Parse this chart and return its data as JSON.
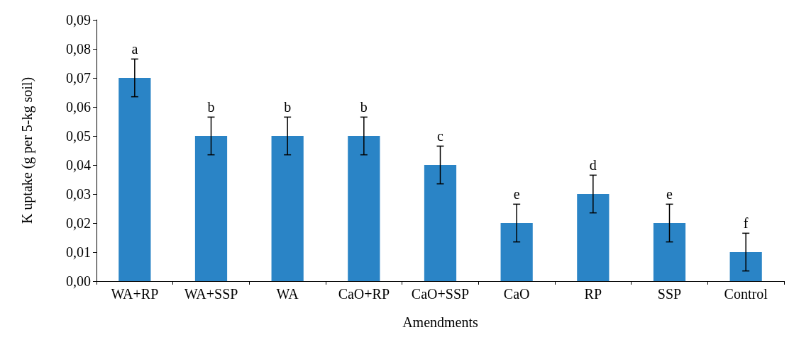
{
  "chart_data": {
    "type": "bar",
    "xlabel": "Amendments",
    "ylabel": "K uptake (g per 5-kg soil)",
    "categories": [
      "WA+RP",
      "WA+SSP",
      "WA",
      "CaO+RP",
      "CaO+SSP",
      "CaO",
      "RP",
      "SSP",
      "Control"
    ],
    "values": [
      0.07,
      0.05,
      0.05,
      0.05,
      0.04,
      0.02,
      0.03,
      0.02,
      0.01
    ],
    "errors": [
      0.0065,
      0.0065,
      0.0065,
      0.0065,
      0.0065,
      0.0065,
      0.0065,
      0.0065,
      0.0065
    ],
    "color": "#2a84c6",
    "ylim": [
      0,
      0.09
    ],
    "yticks": [
      {
        "value": 0,
        "label": "0,00"
      },
      {
        "value": 0.01,
        "label": "0,01"
      },
      {
        "value": 0.02,
        "label": "0,02"
      },
      {
        "value": 0.03,
        "label": "0,03"
      },
      {
        "value": 0.04,
        "label": "0,04"
      },
      {
        "value": 0.05,
        "label": "0,05"
      },
      {
        "value": 0.06,
        "label": "0,06"
      },
      {
        "value": 0.07,
        "label": "0,07"
      },
      {
        "value": 0.08,
        "label": "0,08"
      },
      {
        "value": 0.09,
        "label": "0,09"
      }
    ],
    "annotations": [
      {
        "text": "a",
        "x": "WA+RP",
        "y": 0.0765
      },
      {
        "text": "b",
        "x": "WA+SSP",
        "y": 0.0565
      },
      {
        "text": "b",
        "x": "WA",
        "y": 0.0565
      },
      {
        "text": "b",
        "x": "CaO+RP",
        "y": 0.0565
      },
      {
        "text": "c",
        "x": "CaO+SSP",
        "y": 0.0465
      },
      {
        "text": "e",
        "x": "CaO",
        "y": 0.0265
      },
      {
        "text": "d",
        "x": "RP",
        "y": 0.0365
      },
      {
        "text": "e",
        "x": "SSP",
        "y": 0.0265
      },
      {
        "text": "f",
        "x": "Control",
        "y": 0.0165
      }
    ],
    "tick_labels": "xy"
  }
}
